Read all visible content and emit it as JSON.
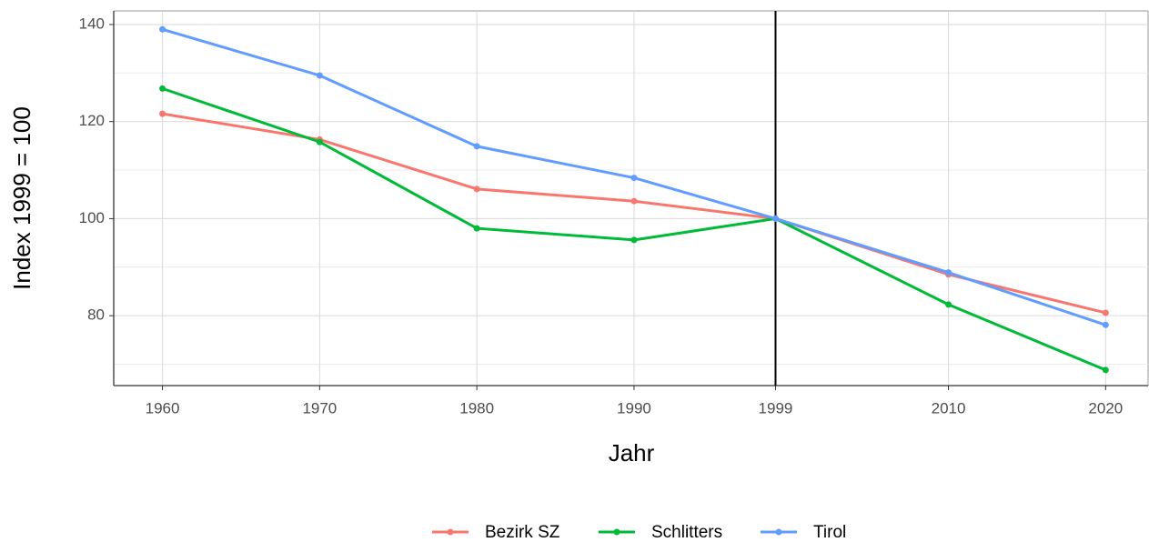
{
  "chart_data": {
    "type": "line",
    "x_label": "Jahr",
    "y_label": "Index 1999 = 100",
    "x": [
      1960,
      1970,
      1980,
      1990,
      1999,
      2010,
      2020
    ],
    "series": [
      {
        "name": "Bezirk SZ",
        "color": "#F8766D",
        "values": [
          121.6,
          116.3,
          106.1,
          103.6,
          100,
          88.5,
          80.6
        ]
      },
      {
        "name": "Schlitters",
        "color": "#00BA38",
        "values": [
          126.8,
          115.8,
          98.0,
          95.6,
          100,
          82.3,
          68.8
        ]
      },
      {
        "name": "Tirol",
        "color": "#619CFF",
        "values": [
          139.0,
          129.5,
          114.9,
          108.4,
          100,
          88.9,
          78.1
        ]
      }
    ],
    "xlim": [
      1956.9,
      2022.7
    ],
    "xticks": [
      1960,
      1970,
      1980,
      1990,
      1999,
      2010,
      2020
    ],
    "ylim": [
      65.6,
      142.8
    ],
    "yticks": [
      80,
      100,
      120,
      140
    ],
    "yminor": [
      70,
      90,
      110,
      130
    ],
    "vline": 1999,
    "grid": true,
    "legend": "bottom"
  }
}
